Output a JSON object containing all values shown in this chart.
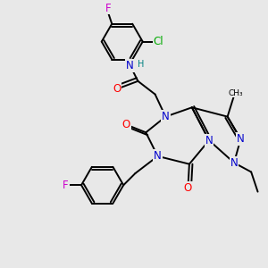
{
  "bg_color": "#e8e8e8",
  "bond_color": "#000000",
  "atom_colors": {
    "N": "#0000cc",
    "O": "#ff0000",
    "F": "#cc00cc",
    "Cl": "#00aa00",
    "H": "#008080",
    "C": "#000000"
  },
  "font_size": 8.5,
  "bond_width": 1.4,
  "figsize": [
    3.0,
    3.0
  ],
  "dpi": 100
}
